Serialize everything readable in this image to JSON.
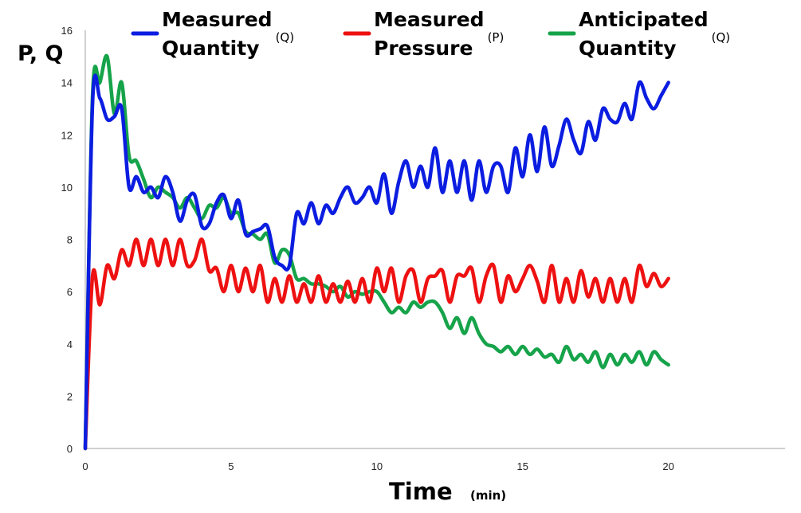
{
  "chart_data": {
    "type": "line",
    "title": "",
    "ylabel": "P, Q",
    "xlabel": "Time",
    "xlabel_unit": "(min)",
    "xlim": [
      0,
      24
    ],
    "ylim": [
      0,
      16
    ],
    "x_ticks": [
      0,
      5,
      10,
      15,
      20
    ],
    "y_ticks": [
      0,
      2,
      4,
      6,
      8,
      10,
      12,
      14,
      16
    ],
    "grid": false,
    "legend_position": "top",
    "series": [
      {
        "name": "Measured Quantity",
        "symbol": "(Q)",
        "legend_line1": "Measured",
        "legend_line2": "Quantity",
        "color": "#0b1de0",
        "x": [
          0,
          0.25,
          0.5,
          0.75,
          1.0,
          1.25,
          1.5,
          1.75,
          2.0,
          2.25,
          2.5,
          2.75,
          3.0,
          3.25,
          3.5,
          3.75,
          4.0,
          4.25,
          4.5,
          4.75,
          5.0,
          5.25,
          5.5,
          5.75,
          6.0,
          6.25,
          6.5,
          6.75,
          7.0,
          7.25,
          7.5,
          7.75,
          8.0,
          8.25,
          8.5,
          8.75,
          9.0,
          9.25,
          9.5,
          9.75,
          10.0,
          10.25,
          10.5,
          10.75,
          11.0,
          11.25,
          11.5,
          11.75,
          12.0,
          12.25,
          12.5,
          12.75,
          13.0,
          13.25,
          13.5,
          13.75,
          14.0,
          14.25,
          14.5,
          14.75,
          15.0,
          15.25,
          15.5,
          15.75,
          16.0,
          16.25,
          16.5,
          16.75,
          17.0,
          17.25,
          17.5,
          17.75,
          18.0,
          18.25,
          18.5,
          18.75,
          19.0,
          19.25,
          19.5,
          19.75,
          20.0
        ],
        "y": [
          0,
          13.2,
          13.4,
          12.6,
          12.7,
          13.0,
          10.0,
          10.4,
          9.8,
          10.0,
          9.6,
          10.4,
          9.8,
          8.7,
          9.5,
          9.7,
          8.5,
          8.6,
          9.4,
          9.7,
          8.8,
          9.5,
          8.2,
          8.3,
          8.4,
          8.5,
          7.3,
          7.0,
          7.0,
          9.0,
          8.6,
          9.4,
          8.6,
          9.3,
          9.0,
          9.6,
          10.0,
          9.4,
          9.6,
          10.0,
          9.4,
          10.5,
          9.0,
          10.2,
          11.0,
          10.0,
          10.8,
          10.0,
          11.5,
          9.8,
          11.0,
          9.8,
          11.0,
          9.5,
          11.0,
          9.8,
          10.8,
          10.8,
          9.8,
          11.5,
          10.4,
          12.0,
          10.6,
          12.3,
          10.8,
          11.6,
          12.6,
          11.8,
          11.3,
          12.5,
          11.8,
          13.0,
          12.6,
          12.5,
          13.2,
          12.6,
          14.0,
          13.4,
          13.0,
          13.5,
          14.0
        ]
      },
      {
        "name": "Measured Pressure",
        "symbol": "(P)",
        "legend_line1": "Measured",
        "legend_line2": "Pressure",
        "color": "#ee1111",
        "x": [
          0,
          0.25,
          0.5,
          0.75,
          1.0,
          1.25,
          1.5,
          1.75,
          2.0,
          2.25,
          2.5,
          2.75,
          3.0,
          3.25,
          3.5,
          3.75,
          4.0,
          4.25,
          4.5,
          4.75,
          5.0,
          5.25,
          5.5,
          5.75,
          6.0,
          6.25,
          6.5,
          6.75,
          7.0,
          7.25,
          7.5,
          7.75,
          8.0,
          8.25,
          8.5,
          8.75,
          9.0,
          9.25,
          9.5,
          9.75,
          10.0,
          10.25,
          10.5,
          10.75,
          11.0,
          11.25,
          11.5,
          11.75,
          12.0,
          12.25,
          12.5,
          12.75,
          13.0,
          13.25,
          13.5,
          13.75,
          14.0,
          14.25,
          14.5,
          14.75,
          15.0,
          15.25,
          15.5,
          15.75,
          16.0,
          16.25,
          16.5,
          16.75,
          17.0,
          17.25,
          17.5,
          17.75,
          18.0,
          18.25,
          18.5,
          18.75,
          19.0,
          19.25,
          19.5,
          19.75,
          20.0
        ],
        "y": [
          0,
          6.6,
          5.5,
          7.0,
          6.5,
          7.6,
          7.0,
          8.0,
          7.0,
          8.0,
          7.0,
          8.0,
          7.0,
          8.0,
          7.0,
          7.2,
          8.0,
          6.8,
          6.9,
          6.0,
          7.0,
          6.0,
          6.9,
          6.0,
          7.0,
          5.6,
          6.5,
          5.6,
          6.6,
          5.6,
          6.3,
          5.6,
          6.6,
          5.6,
          6.3,
          5.6,
          6.4,
          5.6,
          6.5,
          5.6,
          6.9,
          6.0,
          6.9,
          5.6,
          6.6,
          6.8,
          5.6,
          6.5,
          6.6,
          6.8,
          5.6,
          6.6,
          6.6,
          6.9,
          5.6,
          6.6,
          7.0,
          5.6,
          6.6,
          6.0,
          6.5,
          7.0,
          6.4,
          5.6,
          7.0,
          5.6,
          6.5,
          5.6,
          6.8,
          5.8,
          6.5,
          5.6,
          6.5,
          5.6,
          6.5,
          5.6,
          7.0,
          6.2,
          6.7,
          6.2,
          6.5
        ]
      },
      {
        "name": "Anticipated Quantity",
        "symbol": "(Q)",
        "legend_line1": "Anticipated",
        "legend_line2": "Quantity",
        "color": "#16a34a",
        "x": [
          0,
          0.25,
          0.5,
          0.75,
          1.0,
          1.25,
          1.5,
          1.75,
          2.0,
          2.25,
          2.5,
          2.75,
          3.0,
          3.25,
          3.5,
          3.75,
          4.0,
          4.25,
          4.5,
          4.75,
          5.0,
          5.25,
          5.5,
          5.75,
          6.0,
          6.25,
          6.5,
          6.75,
          7.0,
          7.25,
          7.5,
          7.75,
          8.0,
          8.25,
          8.5,
          8.75,
          9.0,
          9.25,
          9.5,
          9.75,
          10.0,
          10.25,
          10.5,
          10.75,
          11.0,
          11.25,
          11.5,
          11.75,
          12.0,
          12.25,
          12.5,
          12.75,
          13.0,
          13.25,
          13.5,
          13.75,
          14.0,
          14.25,
          14.5,
          14.75,
          15.0,
          15.25,
          15.5,
          15.75,
          16.0,
          16.25,
          16.5,
          16.75,
          17.0,
          17.25,
          17.5,
          17.75,
          18.0,
          18.25,
          18.5,
          18.75,
          19.0,
          19.25,
          19.5,
          19.75,
          20.0
        ],
        "y": [
          0,
          13.5,
          14.0,
          15.0,
          12.8,
          14.0,
          11.2,
          11.0,
          10.3,
          9.6,
          10.0,
          9.8,
          9.6,
          9.2,
          9.6,
          9.2,
          8.8,
          9.3,
          9.2,
          9.6,
          9.0,
          9.0,
          8.3,
          8.2,
          8.0,
          8.2,
          7.1,
          7.6,
          7.4,
          6.5,
          6.5,
          6.3,
          6.3,
          6.2,
          6.0,
          6.2,
          5.8,
          6.0,
          5.9,
          6.0,
          6.0,
          5.6,
          5.2,
          5.4,
          5.2,
          5.6,
          5.4,
          5.6,
          5.6,
          5.2,
          4.6,
          5.0,
          4.4,
          5.0,
          4.4,
          4.0,
          3.9,
          3.7,
          3.9,
          3.6,
          3.9,
          3.6,
          3.8,
          3.5,
          3.6,
          3.3,
          3.9,
          3.4,
          3.6,
          3.3,
          3.7,
          3.1,
          3.6,
          3.2,
          3.6,
          3.3,
          3.7,
          3.2,
          3.7,
          3.4,
          3.2
        ]
      }
    ]
  }
}
